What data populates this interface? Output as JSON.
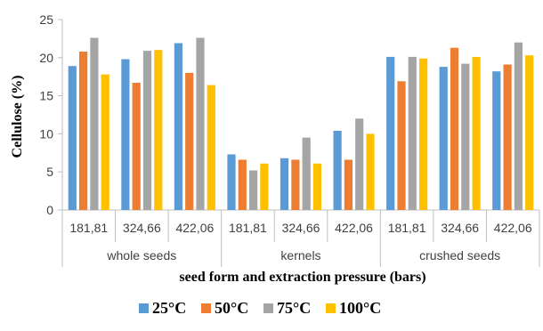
{
  "chart_data": {
    "type": "bar",
    "ylabel": "Cellulose (%)",
    "xlabel": "seed form and extraction pressure (bars)",
    "ylim": [
      0,
      25
    ],
    "yticks": [
      0,
      5,
      10,
      15,
      20,
      25
    ],
    "grid": false,
    "legend_position": "bottom",
    "groups": [
      {
        "label": "whole seeds",
        "categories": [
          "181,81",
          "324,66",
          "422,06"
        ]
      },
      {
        "label": "kernels",
        "categories": [
          "181,81",
          "324,66",
          "422,06"
        ]
      },
      {
        "label": "crushed seeds",
        "categories": [
          "181,81",
          "324,66",
          "422,06"
        ]
      }
    ],
    "series": [
      {
        "name": "25°C",
        "color": "#5B9BD5",
        "values": [
          18.9,
          19.8,
          21.9,
          7.3,
          6.8,
          10.4,
          20.1,
          18.8,
          18.2
        ]
      },
      {
        "name": "50°C",
        "color": "#ED7D31",
        "values": [
          20.8,
          16.7,
          18.0,
          6.6,
          6.6,
          6.6,
          16.9,
          21.3,
          19.1
        ]
      },
      {
        "name": "75°C",
        "color": "#A5A5A5",
        "values": [
          22.6,
          20.9,
          22.6,
          5.2,
          9.5,
          12.0,
          20.1,
          19.2,
          22.0
        ]
      },
      {
        "name": "100°C",
        "color": "#FFC000",
        "values": [
          17.8,
          21.0,
          16.4,
          6.1,
          6.1,
          10.0,
          19.9,
          20.1,
          20.3
        ]
      }
    ]
  }
}
